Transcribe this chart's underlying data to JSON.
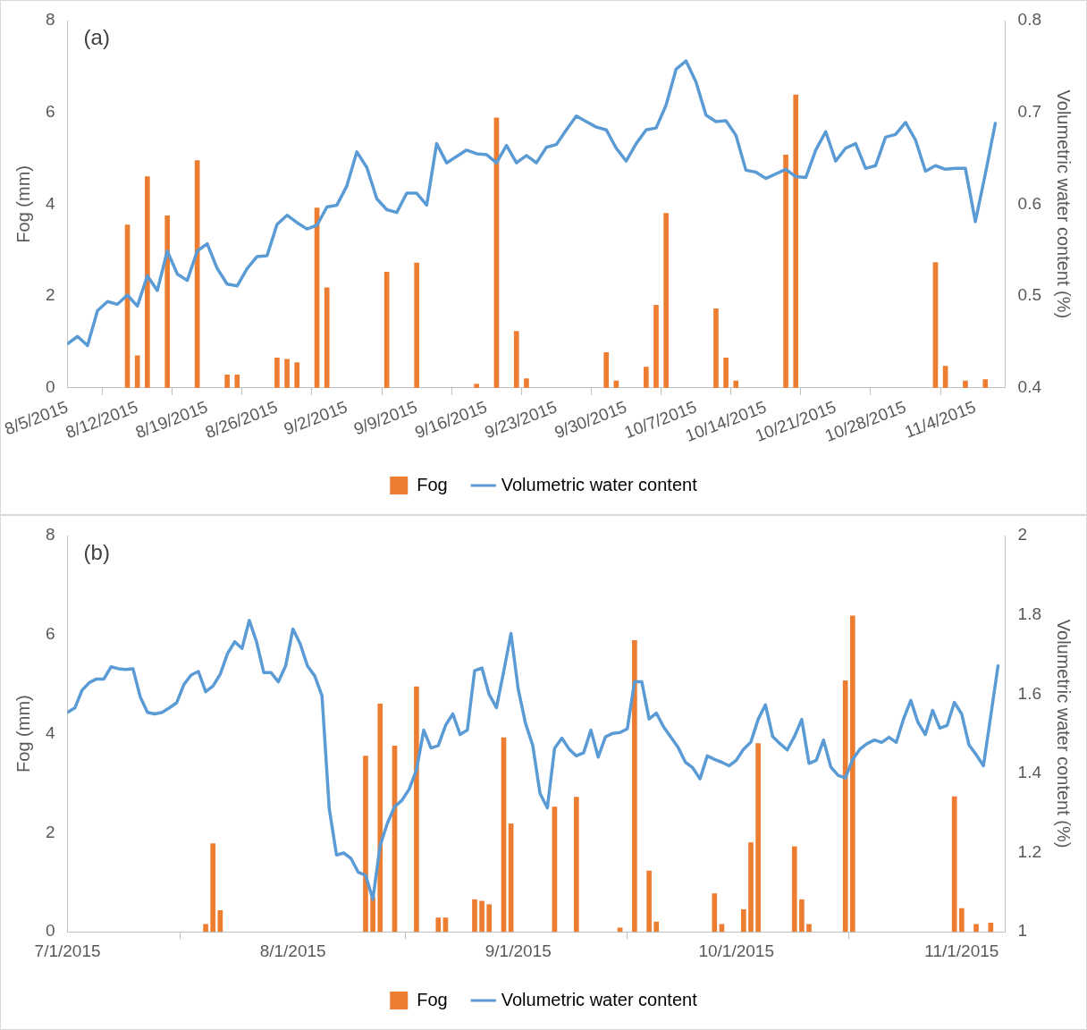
{
  "chart_data": [
    {
      "type": "bar",
      "ylabel": "Fog (mm)",
      "y2label": "Volumetric water content (%)",
      "annotations": [
        "(a)"
      ],
      "xlim": [
        "2015-08-05",
        "2015-11-07"
      ],
      "xticks": [
        {
          "value": "2015-08-05",
          "label": "8/5/2015"
        },
        {
          "value": "2015-08-12",
          "label": "8/12/2015"
        },
        {
          "value": "2015-08-19",
          "label": "8/19/2015"
        },
        {
          "value": "2015-08-26",
          "label": "8/26/2015"
        },
        {
          "value": "2015-09-02",
          "label": "9/2/2015"
        },
        {
          "value": "2015-09-09",
          "label": "9/9/2015"
        },
        {
          "value": "2015-09-16",
          "label": "9/16/2015"
        },
        {
          "value": "2015-09-23",
          "label": "9/23/2015"
        },
        {
          "value": "2015-09-30",
          "label": "9/30/2015"
        },
        {
          "value": "2015-10-07",
          "label": "10/7/2015"
        },
        {
          "value": "2015-10-14",
          "label": "10/14/2015"
        },
        {
          "value": "2015-10-21",
          "label": "10/21/2015"
        },
        {
          "value": "2015-10-28",
          "label": "10/28/2015"
        },
        {
          "value": "2015-11-04",
          "label": "11/4/2015"
        }
      ],
      "ylim": [
        0,
        8
      ],
      "yticks": [
        0,
        2,
        4,
        6,
        8
      ],
      "y2lim": [
        0.4,
        0.8
      ],
      "y2ticks": [
        0.4,
        0.5,
        0.6,
        0.7,
        0.8
      ],
      "grid": false,
      "legend": "bottom",
      "marker": "none",
      "x": [
        "2015-08-05",
        "2015-08-06",
        "2015-08-07",
        "2015-08-08",
        "2015-08-09",
        "2015-08-10",
        "2015-08-11",
        "2015-08-12",
        "2015-08-13",
        "2015-08-14",
        "2015-08-15",
        "2015-08-16",
        "2015-08-17",
        "2015-08-18",
        "2015-08-19",
        "2015-08-20",
        "2015-08-21",
        "2015-08-22",
        "2015-08-23",
        "2015-08-24",
        "2015-08-25",
        "2015-08-26",
        "2015-08-27",
        "2015-08-28",
        "2015-08-29",
        "2015-08-30",
        "2015-08-31",
        "2015-09-01",
        "2015-09-02",
        "2015-09-03",
        "2015-09-04",
        "2015-09-05",
        "2015-09-06",
        "2015-09-07",
        "2015-09-08",
        "2015-09-09",
        "2015-09-10",
        "2015-09-11",
        "2015-09-12",
        "2015-09-13",
        "2015-09-14",
        "2015-09-15",
        "2015-09-16",
        "2015-09-17",
        "2015-09-18",
        "2015-09-19",
        "2015-09-20",
        "2015-09-21",
        "2015-09-22",
        "2015-09-23",
        "2015-09-24",
        "2015-09-25",
        "2015-09-26",
        "2015-09-27",
        "2015-09-28",
        "2015-09-29",
        "2015-09-30",
        "2015-10-01",
        "2015-10-02",
        "2015-10-03",
        "2015-10-04",
        "2015-10-05",
        "2015-10-06",
        "2015-10-07",
        "2015-10-08",
        "2015-10-09",
        "2015-10-10",
        "2015-10-11",
        "2015-10-12",
        "2015-10-13",
        "2015-10-14",
        "2015-10-15",
        "2015-10-16",
        "2015-10-17",
        "2015-10-18",
        "2015-10-19",
        "2015-10-20",
        "2015-10-21",
        "2015-10-22",
        "2015-10-23",
        "2015-10-24",
        "2015-10-25",
        "2015-10-26",
        "2015-10-27",
        "2015-10-28",
        "2015-10-29",
        "2015-10-30",
        "2015-10-31",
        "2015-11-01",
        "2015-11-02",
        "2015-11-03",
        "2015-11-04",
        "2015-11-05",
        "2015-11-06"
      ],
      "series": [
        {
          "name": "Fog",
          "color": "#ed7d31",
          "x": [
            "2015-08-11",
            "2015-08-12",
            "2015-08-13",
            "2015-08-15",
            "2015-08-18",
            "2015-08-21",
            "2015-08-22",
            "2015-08-26",
            "2015-08-27",
            "2015-08-28",
            "2015-08-30",
            "2015-08-31",
            "2015-09-06",
            "2015-09-09",
            "2015-09-15",
            "2015-09-17",
            "2015-09-19",
            "2015-09-20",
            "2015-09-28",
            "2015-09-29",
            "2015-10-02",
            "2015-10-03",
            "2015-10-04",
            "2015-10-09",
            "2015-10-10",
            "2015-10-11",
            "2015-10-16",
            "2015-10-17",
            "2015-10-31",
            "2015-11-01",
            "2015-11-03",
            "2015-11-05"
          ],
          "values": [
            3.55,
            0.7,
            4.6,
            3.75,
            4.95,
            0.28,
            0.28,
            0.65,
            0.62,
            0.55,
            3.92,
            2.18,
            2.52,
            2.72,
            0.08,
            5.88,
            1.23,
            0.2,
            0.77,
            0.15,
            0.45,
            1.8,
            3.8,
            1.72,
            0.65,
            0.15,
            5.07,
            6.38,
            2.73,
            0.47,
            0.15,
            0.18
          ]
        },
        {
          "name": "Volumetric water content",
          "type": "line",
          "axis": "y2",
          "color": "#5b9bd5",
          "values": [
            0.448,
            0.456,
            0.446,
            0.484,
            0.494,
            0.491,
            0.501,
            0.489,
            0.522,
            0.506,
            0.549,
            0.524,
            0.517,
            0.549,
            0.557,
            0.53,
            0.513,
            0.511,
            0.53,
            0.543,
            0.544,
            0.578,
            0.588,
            0.58,
            0.573,
            0.577,
            0.597,
            0.599,
            0.62,
            0.657,
            0.64,
            0.606,
            0.594,
            0.591,
            0.612,
            0.612,
            0.599,
            0.666,
            0.645,
            0.652,
            0.659,
            0.655,
            0.654,
            0.645,
            0.664,
            0.645,
            0.653,
            0.645,
            0.662,
            0.665,
            0.681,
            0.696,
            0.69,
            0.684,
            0.681,
            0.661,
            0.647,
            0.666,
            0.681,
            0.683,
            0.708,
            0.747,
            0.756,
            0.733,
            0.697,
            0.69,
            0.691,
            0.675,
            0.637,
            0.635,
            0.628,
            0.633,
            0.638,
            0.63,
            0.629,
            0.659,
            0.679,
            0.647,
            0.661,
            0.666,
            0.639,
            0.642,
            0.673,
            0.676,
            0.689,
            0.67,
            0.636,
            0.642,
            0.638,
            0.639,
            0.639,
            0.581,
            0.633,
            0.688
          ]
        }
      ]
    },
    {
      "type": "bar",
      "ylabel": "Fog (mm)",
      "y2label": "Volumetric water content (%)",
      "annotations": [
        "(b)"
      ],
      "xlim": [
        "2015-07-01",
        "2015-11-07"
      ],
      "xticks": [
        {
          "value": "2015-07-01",
          "label": "7/1/2015"
        },
        {
          "value": "2015-08-01",
          "label": "8/1/2015"
        },
        {
          "value": "2015-09-01",
          "label": "9/1/2015"
        },
        {
          "value": "2015-10-01",
          "label": "10/1/2015"
        },
        {
          "value": "2015-11-01",
          "label": "11/1/2015"
        }
      ],
      "ylim": [
        0,
        8
      ],
      "yticks": [
        0,
        2,
        4,
        6,
        8
      ],
      "y2lim": [
        1,
        2
      ],
      "y2ticks": [
        1,
        1.2,
        1.4,
        1.6,
        1.8,
        2
      ],
      "grid": false,
      "legend": "bottom",
      "marker": "none",
      "x": [
        "2015-07-01",
        "2015-07-02",
        "2015-07-03",
        "2015-07-04",
        "2015-07-05",
        "2015-07-06",
        "2015-07-07",
        "2015-07-08",
        "2015-07-09",
        "2015-07-10",
        "2015-07-11",
        "2015-07-12",
        "2015-07-13",
        "2015-07-14",
        "2015-07-15",
        "2015-07-16",
        "2015-07-17",
        "2015-07-18",
        "2015-07-19",
        "2015-07-20",
        "2015-07-21",
        "2015-07-22",
        "2015-07-23",
        "2015-07-24",
        "2015-07-25",
        "2015-07-26",
        "2015-07-27",
        "2015-07-28",
        "2015-07-29",
        "2015-07-30",
        "2015-07-31",
        "2015-08-01",
        "2015-08-02",
        "2015-08-03",
        "2015-08-04",
        "2015-08-05",
        "2015-08-06",
        "2015-08-07",
        "2015-08-08",
        "2015-08-09",
        "2015-08-10",
        "2015-08-11",
        "2015-08-12",
        "2015-08-13",
        "2015-08-14",
        "2015-08-15",
        "2015-08-16",
        "2015-08-17",
        "2015-08-18",
        "2015-08-19",
        "2015-08-20",
        "2015-08-21",
        "2015-08-22",
        "2015-08-23",
        "2015-08-24",
        "2015-08-25",
        "2015-08-26",
        "2015-08-27",
        "2015-08-28",
        "2015-08-29",
        "2015-08-30",
        "2015-08-31",
        "2015-09-01",
        "2015-09-02",
        "2015-09-03",
        "2015-09-04",
        "2015-09-05",
        "2015-09-06",
        "2015-09-07",
        "2015-09-08",
        "2015-09-09",
        "2015-09-10",
        "2015-09-11",
        "2015-09-12",
        "2015-09-13",
        "2015-09-14",
        "2015-09-15",
        "2015-09-16",
        "2015-09-17",
        "2015-09-18",
        "2015-09-19",
        "2015-09-20",
        "2015-09-21",
        "2015-09-22",
        "2015-09-23",
        "2015-09-24",
        "2015-09-25",
        "2015-09-26",
        "2015-09-27",
        "2015-09-28",
        "2015-09-29",
        "2015-09-30",
        "2015-10-01",
        "2015-10-02",
        "2015-10-03",
        "2015-10-04",
        "2015-10-05",
        "2015-10-06",
        "2015-10-07",
        "2015-10-08",
        "2015-10-09",
        "2015-10-10",
        "2015-10-11",
        "2015-10-12",
        "2015-10-13",
        "2015-10-14",
        "2015-10-15",
        "2015-10-16",
        "2015-10-17",
        "2015-10-18",
        "2015-10-19",
        "2015-10-20",
        "2015-10-21",
        "2015-10-22",
        "2015-10-23",
        "2015-10-24",
        "2015-10-25",
        "2015-10-26",
        "2015-10-27",
        "2015-10-28",
        "2015-10-29",
        "2015-10-30",
        "2015-10-31",
        "2015-11-01",
        "2015-11-02",
        "2015-11-03",
        "2015-11-04",
        "2015-11-05",
        "2015-11-06"
      ],
      "series": [
        {
          "name": "Fog",
          "color": "#ed7d31",
          "x": [
            "2015-07-20",
            "2015-07-21",
            "2015-07-22",
            "2015-08-11",
            "2015-08-12",
            "2015-08-13",
            "2015-08-15",
            "2015-08-18",
            "2015-08-21",
            "2015-08-22",
            "2015-08-26",
            "2015-08-27",
            "2015-08-28",
            "2015-08-30",
            "2015-08-31",
            "2015-09-06",
            "2015-09-09",
            "2015-09-15",
            "2015-09-17",
            "2015-09-19",
            "2015-09-20",
            "2015-09-28",
            "2015-09-29",
            "2015-10-02",
            "2015-10-03",
            "2015-10-04",
            "2015-10-09",
            "2015-10-10",
            "2015-10-11",
            "2015-10-16",
            "2015-10-17",
            "2015-10-31",
            "2015-11-01",
            "2015-11-03",
            "2015-11-05"
          ],
          "values": [
            0.15,
            1.78,
            0.43,
            3.55,
            0.7,
            4.6,
            3.75,
            4.95,
            0.28,
            0.28,
            0.65,
            0.62,
            0.55,
            3.92,
            2.18,
            2.52,
            2.72,
            0.08,
            5.88,
            1.23,
            0.2,
            0.77,
            0.15,
            0.45,
            1.8,
            3.8,
            1.72,
            0.65,
            0.15,
            5.07,
            6.38,
            2.73,
            0.47,
            0.15,
            0.18
          ]
        },
        {
          "name": "Volumetric water content",
          "type": "line",
          "axis": "y2",
          "color": "#5b9bd5",
          "values": [
            1.554,
            1.565,
            1.61,
            1.629,
            1.638,
            1.638,
            1.669,
            1.664,
            1.662,
            1.664,
            1.593,
            1.554,
            1.55,
            1.554,
            1.565,
            1.578,
            1.624,
            1.648,
            1.657,
            1.606,
            1.62,
            1.65,
            1.702,
            1.732,
            1.715,
            1.786,
            1.732,
            1.654,
            1.654,
            1.631,
            1.671,
            1.764,
            1.727,
            1.671,
            1.646,
            1.596,
            1.311,
            1.194,
            1.199,
            1.185,
            1.15,
            1.143,
            1.082,
            1.218,
            1.274,
            1.316,
            1.332,
            1.36,
            1.409,
            1.509,
            1.464,
            1.47,
            1.521,
            1.55,
            1.498,
            1.509,
            1.659,
            1.666,
            1.599,
            1.566,
            1.657,
            1.753,
            1.612,
            1.526,
            1.47,
            1.349,
            1.313,
            1.463,
            1.489,
            1.461,
            1.444,
            1.452,
            1.509,
            1.441,
            1.492,
            1.501,
            1.503,
            1.512,
            1.631,
            1.631,
            1.537,
            1.552,
            1.517,
            1.491,
            1.465,
            1.428,
            1.414,
            1.386,
            1.444,
            1.435,
            1.428,
            1.419,
            1.433,
            1.461,
            1.479,
            1.536,
            1.573,
            1.493,
            1.475,
            1.459,
            1.493,
            1.536,
            1.425,
            1.433,
            1.484,
            1.416,
            1.395,
            1.388,
            1.435,
            1.461,
            1.475,
            1.484,
            1.478,
            1.491,
            1.478,
            1.537,
            1.584,
            1.528,
            1.498,
            1.559,
            1.514,
            1.521,
            1.579,
            1.55,
            1.472,
            1.447,
            1.419,
            1.545,
            1.671
          ]
        }
      ]
    }
  ]
}
